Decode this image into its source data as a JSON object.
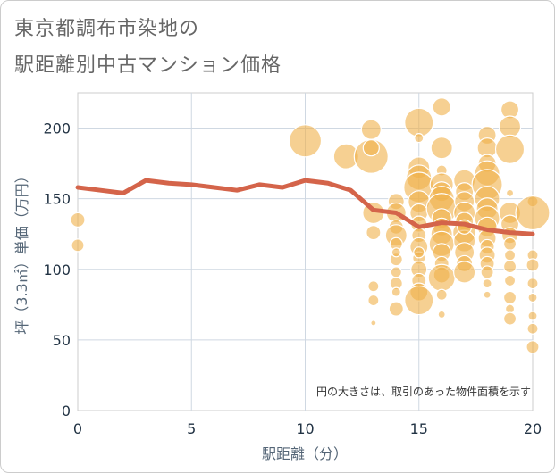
{
  "title_lines": [
    "東京都調布市染地の",
    "駅距離別中古マンション価格"
  ],
  "chart_data": {
    "type": "scatter",
    "xlabel": "駅距離（分）",
    "ylabel": "坪（3.3㎡）単価（万円）",
    "xlim": [
      0,
      20
    ],
    "ylim": [
      0,
      225
    ],
    "xticks": [
      0,
      5,
      10,
      15,
      20
    ],
    "yticks": [
      0,
      50,
      100,
      150,
      200
    ],
    "grid": true,
    "annotation": "円の大きさは、取引のあった物件面積を示す",
    "colors": {
      "bubble": "#f0b14a",
      "line": "#d4644a",
      "grid": "#cfd8e2"
    },
    "line": {
      "x": [
        0,
        1,
        2,
        3,
        4,
        5,
        6,
        7,
        8,
        9,
        10,
        11,
        12,
        13,
        14,
        15,
        16,
        17,
        18,
        19,
        20
      ],
      "y": [
        158,
        156,
        154,
        163,
        161,
        160,
        158,
        156,
        160,
        158,
        163,
        161,
        156,
        142,
        140,
        130,
        133,
        132,
        128,
        126,
        125
      ]
    },
    "bubbles": [
      {
        "x": 0,
        "y": 135,
        "s": 8
      },
      {
        "x": 0,
        "y": 117,
        "s": 7
      },
      {
        "x": 10,
        "y": 191,
        "s": 18
      },
      {
        "x": 11.8,
        "y": 180,
        "s": 14
      },
      {
        "x": 12.9,
        "y": 180,
        "s": 19
      },
      {
        "x": 12.9,
        "y": 199,
        "s": 11
      },
      {
        "x": 12.9,
        "y": 186,
        "s": 9
      },
      {
        "x": 13,
        "y": 140,
        "s": 12
      },
      {
        "x": 13,
        "y": 126,
        "s": 8
      },
      {
        "x": 13,
        "y": 88,
        "s": 6
      },
      {
        "x": 13,
        "y": 78,
        "s": 6
      },
      {
        "x": 13,
        "y": 62,
        "s": 3
      },
      {
        "x": 14,
        "y": 148,
        "s": 9
      },
      {
        "x": 14,
        "y": 140,
        "s": 11
      },
      {
        "x": 14,
        "y": 130,
        "s": 8
      },
      {
        "x": 14,
        "y": 124,
        "s": 12
      },
      {
        "x": 14,
        "y": 118,
        "s": 7
      },
      {
        "x": 14,
        "y": 107,
        "s": 7
      },
      {
        "x": 14,
        "y": 98,
        "s": 6
      },
      {
        "x": 14,
        "y": 90,
        "s": 7
      },
      {
        "x": 14,
        "y": 84,
        "s": 5
      },
      {
        "x": 14,
        "y": 72,
        "s": 8
      },
      {
        "x": 14,
        "y": 112,
        "s": 5
      },
      {
        "x": 15,
        "y": 204,
        "s": 16
      },
      {
        "x": 15,
        "y": 193,
        "s": 5
      },
      {
        "x": 15,
        "y": 172,
        "s": 12
      },
      {
        "x": 15,
        "y": 165,
        "s": 14
      },
      {
        "x": 15,
        "y": 158,
        "s": 17
      },
      {
        "x": 15,
        "y": 148,
        "s": 12
      },
      {
        "x": 15,
        "y": 140,
        "s": 10
      },
      {
        "x": 15,
        "y": 132,
        "s": 9
      },
      {
        "x": 15,
        "y": 124,
        "s": 8
      },
      {
        "x": 15,
        "y": 116,
        "s": 10
      },
      {
        "x": 15,
        "y": 108,
        "s": 7
      },
      {
        "x": 15,
        "y": 100,
        "s": 9
      },
      {
        "x": 15,
        "y": 92,
        "s": 8
      },
      {
        "x": 15,
        "y": 84,
        "s": 10
      },
      {
        "x": 15,
        "y": 78,
        "s": 16
      },
      {
        "x": 15,
        "y": 112,
        "s": 6
      },
      {
        "x": 16,
        "y": 215,
        "s": 10
      },
      {
        "x": 16,
        "y": 186,
        "s": 12
      },
      {
        "x": 16,
        "y": 170,
        "s": 6
      },
      {
        "x": 16,
        "y": 160,
        "s": 13
      },
      {
        "x": 16,
        "y": 155,
        "s": 11
      },
      {
        "x": 16,
        "y": 150,
        "s": 14
      },
      {
        "x": 16,
        "y": 143,
        "s": 17
      },
      {
        "x": 16,
        "y": 136,
        "s": 11
      },
      {
        "x": 16,
        "y": 130,
        "s": 10
      },
      {
        "x": 16,
        "y": 125,
        "s": 12
      },
      {
        "x": 16,
        "y": 118,
        "s": 14
      },
      {
        "x": 16,
        "y": 112,
        "s": 10
      },
      {
        "x": 16,
        "y": 104,
        "s": 8
      },
      {
        "x": 16,
        "y": 96,
        "s": 9
      },
      {
        "x": 16,
        "y": 94,
        "s": 15
      },
      {
        "x": 16,
        "y": 82,
        "s": 6
      },
      {
        "x": 16,
        "y": 68,
        "s": 4
      },
      {
        "x": 17,
        "y": 163,
        "s": 12
      },
      {
        "x": 17,
        "y": 155,
        "s": 10
      },
      {
        "x": 17,
        "y": 148,
        "s": 11
      },
      {
        "x": 17,
        "y": 140,
        "s": 12
      },
      {
        "x": 17,
        "y": 134,
        "s": 10
      },
      {
        "x": 17,
        "y": 126,
        "s": 13
      },
      {
        "x": 17,
        "y": 120,
        "s": 12
      },
      {
        "x": 17,
        "y": 112,
        "s": 11
      },
      {
        "x": 17,
        "y": 104,
        "s": 9
      },
      {
        "x": 17,
        "y": 98,
        "s": 12
      },
      {
        "x": 17,
        "y": 130,
        "s": 8
      },
      {
        "x": 18,
        "y": 195,
        "s": 10
      },
      {
        "x": 18,
        "y": 186,
        "s": 11
      },
      {
        "x": 18,
        "y": 175,
        "s": 10
      },
      {
        "x": 18,
        "y": 168,
        "s": 14
      },
      {
        "x": 18,
        "y": 160,
        "s": 17
      },
      {
        "x": 18,
        "y": 150,
        "s": 14
      },
      {
        "x": 18,
        "y": 143,
        "s": 12
      },
      {
        "x": 18,
        "y": 136,
        "s": 14
      },
      {
        "x": 18,
        "y": 130,
        "s": 11
      },
      {
        "x": 18,
        "y": 122,
        "s": 10
      },
      {
        "x": 18,
        "y": 116,
        "s": 8
      },
      {
        "x": 18,
        "y": 110,
        "s": 9
      },
      {
        "x": 18,
        "y": 104,
        "s": 8
      },
      {
        "x": 18,
        "y": 98,
        "s": 7
      },
      {
        "x": 18,
        "y": 90,
        "s": 5
      },
      {
        "x": 18,
        "y": 82,
        "s": 4
      },
      {
        "x": 19,
        "y": 213,
        "s": 10
      },
      {
        "x": 19,
        "y": 201,
        "s": 12
      },
      {
        "x": 19,
        "y": 185,
        "s": 16
      },
      {
        "x": 19,
        "y": 154,
        "s": 4
      },
      {
        "x": 19,
        "y": 140,
        "s": 12
      },
      {
        "x": 19,
        "y": 132,
        "s": 10
      },
      {
        "x": 19,
        "y": 124,
        "s": 9
      },
      {
        "x": 19,
        "y": 118,
        "s": 7
      },
      {
        "x": 19,
        "y": 110,
        "s": 6
      },
      {
        "x": 19,
        "y": 102,
        "s": 7
      },
      {
        "x": 19,
        "y": 92,
        "s": 6
      },
      {
        "x": 19,
        "y": 80,
        "s": 7
      },
      {
        "x": 19,
        "y": 72,
        "s": 5
      },
      {
        "x": 19,
        "y": 65,
        "s": 7
      },
      {
        "x": 20,
        "y": 148,
        "s": 6
      },
      {
        "x": 20,
        "y": 140,
        "s": 19
      },
      {
        "x": 20,
        "y": 110,
        "s": 6
      },
      {
        "x": 20,
        "y": 103,
        "s": 7
      },
      {
        "x": 20,
        "y": 90,
        "s": 6
      },
      {
        "x": 20,
        "y": 80,
        "s": 5
      },
      {
        "x": 20,
        "y": 67,
        "s": 5
      },
      {
        "x": 20,
        "y": 58,
        "s": 6
      },
      {
        "x": 20,
        "y": 45,
        "s": 7
      }
    ]
  }
}
